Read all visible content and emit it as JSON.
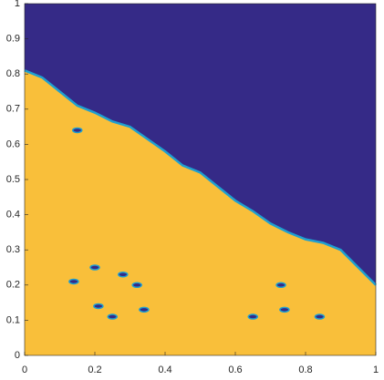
{
  "chart_data": {
    "type": "region",
    "boundary": {
      "x": [
        0,
        0.05,
        0.1,
        0.15,
        0.2,
        0.25,
        0.3,
        0.35,
        0.4,
        0.45,
        0.5,
        0.55,
        0.6,
        0.65,
        0.7,
        0.75,
        0.8,
        0.85,
        0.9,
        0.95,
        1
      ],
      "y": [
        0.81,
        0.79,
        0.75,
        0.71,
        0.69,
        0.665,
        0.65,
        0.615,
        0.58,
        0.54,
        0.52,
        0.48,
        0.44,
        0.41,
        0.375,
        0.35,
        0.33,
        0.32,
        0.3,
        0.25,
        0.2
      ]
    },
    "spots": {
      "x": [
        0.15,
        0.14,
        0.2,
        0.21,
        0.25,
        0.28,
        0.32,
        0.34,
        0.73,
        0.74,
        0.65,
        0.84
      ],
      "y": [
        0.64,
        0.21,
        0.25,
        0.14,
        0.11,
        0.23,
        0.2,
        0.13,
        0.2,
        0.13,
        0.11,
        0.11
      ]
    },
    "above_color": "#352a87",
    "below_color": "#f9bf3a",
    "edge_color": "#1fa0d0",
    "xlim": [
      0,
      1
    ],
    "ylim": [
      0,
      1
    ],
    "xticks": [
      0,
      0.2,
      0.4,
      0.6,
      0.8,
      1
    ],
    "yticks": [
      0,
      0.1,
      0.2,
      0.3,
      0.4,
      0.5,
      0.6,
      0.7,
      0.8,
      0.9,
      1
    ]
  }
}
